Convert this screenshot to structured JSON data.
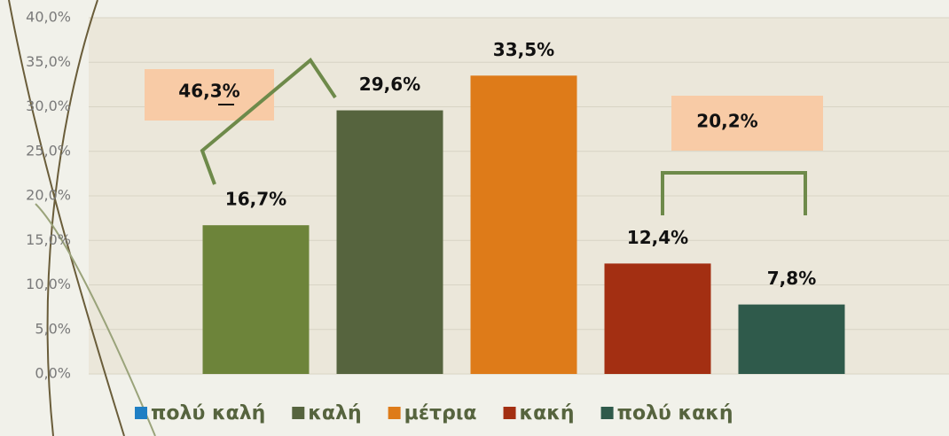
{
  "chart_data": {
    "type": "bar",
    "series": [
      {
        "name": "πολύ καλή",
        "color": "#6d843a",
        "legend_color": "#1f7fc4",
        "values": [
          16.7
        ],
        "value_labels": [
          "16,7%"
        ]
      },
      {
        "name": "καλή",
        "color": "#56643e",
        "legend_color": "#56643e",
        "values": [
          29.6
        ],
        "value_labels": [
          "29,6%"
        ]
      },
      {
        "name": "μέτρια",
        "color": "#de7b19",
        "legend_color": "#de7b19",
        "values": [
          33.5
        ],
        "value_labels": [
          "33,5%"
        ]
      },
      {
        "name": "κακή",
        "color": "#a32f12",
        "legend_color": "#a32f12",
        "values": [
          12.4
        ],
        "value_labels": [
          "12,4%"
        ]
      },
      {
        "name": "πολύ κακή",
        "color": "#2f5a4b",
        "legend_color": "#2f5a4b",
        "values": [
          7.8
        ],
        "value_labels": [
          "7,8%"
        ]
      }
    ],
    "ylim": [
      0,
      40
    ],
    "yticks": [
      {
        "value": 0,
        "label": "0,0%"
      },
      {
        "value": 5,
        "label": "5,0%"
      },
      {
        "value": 10,
        "label": "10,0%"
      },
      {
        "value": 15,
        "label": "15,0%"
      },
      {
        "value": 20,
        "label": "20,0%"
      },
      {
        "value": 25,
        "label": "25,0%"
      },
      {
        "value": 30,
        "label": "30,0%"
      },
      {
        "value": 35,
        "label": "35,0%"
      },
      {
        "value": 40,
        "label": "40,0%"
      }
    ],
    "grid": true,
    "annotations": [
      "46,3%",
      "20,2%"
    ]
  }
}
